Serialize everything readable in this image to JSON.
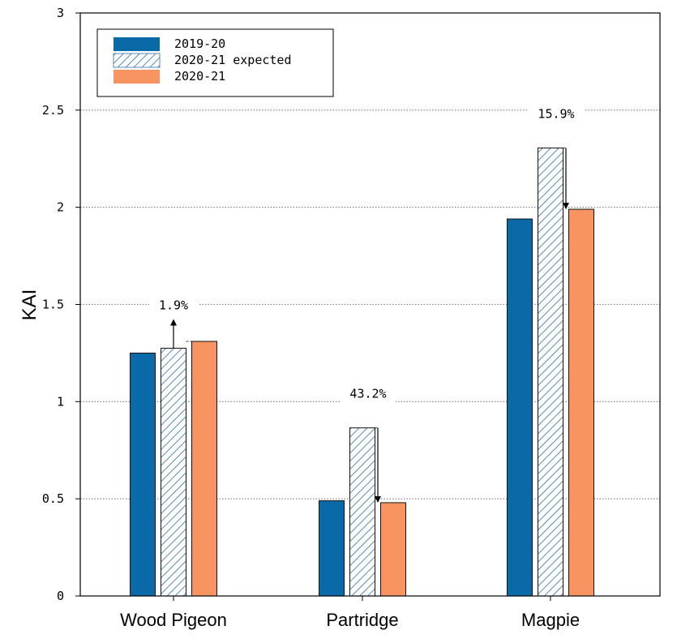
{
  "chart_data": {
    "type": "bar",
    "categories": [
      "Wood Pigeon",
      "Partridge",
      "Magpie"
    ],
    "series": [
      {
        "name": "2019-20",
        "values": [
          1.25,
          0.49,
          1.94
        ],
        "color": "#0a6aa8",
        "pattern": "solid"
      },
      {
        "name": "2020-21 expected",
        "values": [
          1.275,
          0.865,
          2.305
        ],
        "color": "#7aa6cc",
        "pattern": "hatch"
      },
      {
        "name": "2020-21",
        "values": [
          1.31,
          0.48,
          1.99
        ],
        "color": "#f89462",
        "pattern": "solid"
      }
    ],
    "annotations": [
      {
        "category": "Wood Pigeon",
        "label": "1.9%",
        "direction": "up"
      },
      {
        "category": "Partridge",
        "label": "43.2%",
        "direction": "down"
      },
      {
        "category": "Magpie",
        "label": "15.9%",
        "direction": "down"
      }
    ],
    "xlabel": "",
    "ylabel": "KAI",
    "ylim": [
      0,
      3
    ],
    "yticks": [
      0,
      0.5,
      1,
      1.5,
      2,
      2.5,
      3
    ],
    "ytick_labels": [
      "0",
      "0.5",
      "1",
      "1.5",
      "2",
      "2.5",
      "3"
    ],
    "grid": "horizontal dotted",
    "legend_position": "top-left"
  }
}
